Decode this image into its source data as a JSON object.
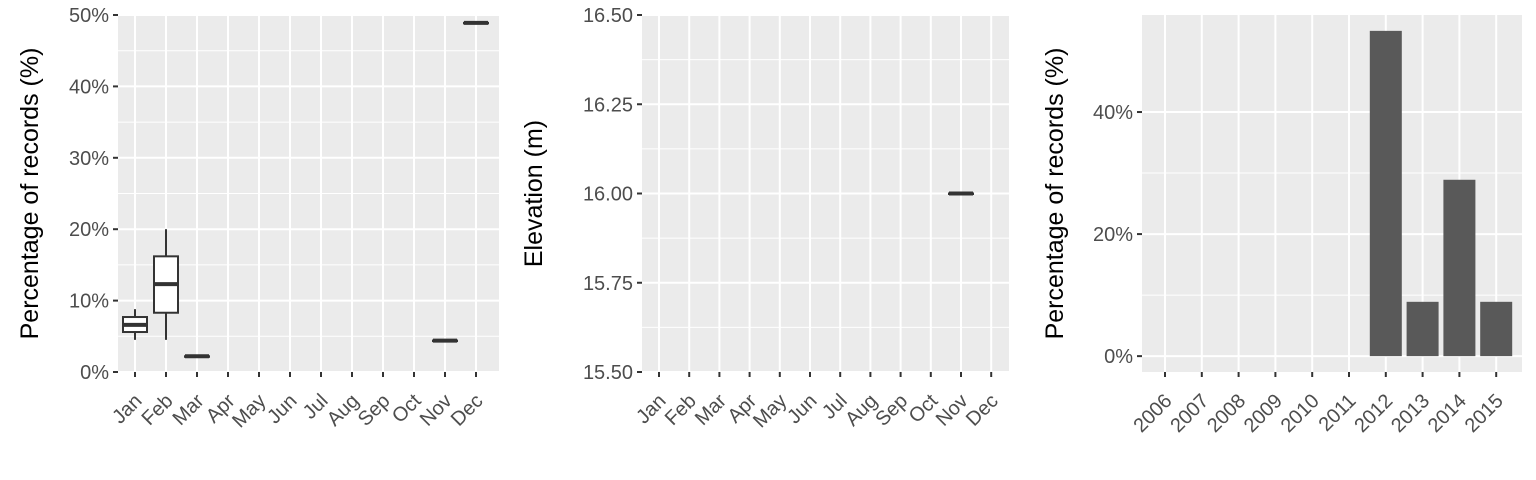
{
  "colors": {
    "panel_bg": "#ebebeb",
    "grid": "#ffffff",
    "tick_text": "#4d4d4d",
    "mark": "#333333",
    "bar_fill": "#595959",
    "box_fill": "#ffffff"
  },
  "chart_data": [
    {
      "type": "box",
      "ylabel": "Percentage of records (%)",
      "categories": [
        "Jan",
        "Feb",
        "Mar",
        "Apr",
        "May",
        "Jun",
        "Jul",
        "Aug",
        "Sep",
        "Oct",
        "Nov",
        "Dec"
      ],
      "ylim": [
        0,
        50
      ],
      "yticks": [
        0,
        10,
        20,
        30,
        40,
        50
      ],
      "yticklabels": [
        "0%",
        "10%",
        "20%",
        "30%",
        "40%",
        "50%"
      ],
      "boxes": [
        {
          "category": "Jan",
          "min": 4.5,
          "q1": 5.6,
          "median": 6.6,
          "q3": 7.7,
          "max": 8.8
        },
        {
          "category": "Feb",
          "min": 4.5,
          "q1": 8.3,
          "median": 12.3,
          "q3": 16.2,
          "max": 20.0
        },
        {
          "category": "Mar",
          "min": 2.2,
          "q1": 2.2,
          "median": 2.2,
          "q3": 2.2,
          "max": 2.2
        },
        {
          "category": "Nov",
          "min": 4.4,
          "q1": 4.4,
          "median": 4.4,
          "q3": 4.4,
          "max": 4.4
        },
        {
          "category": "Dec",
          "min": 48.9,
          "q1": 48.9,
          "median": 48.9,
          "q3": 48.9,
          "max": 48.9
        }
      ],
      "grid": true
    },
    {
      "type": "box",
      "ylabel": "Elevation (m)",
      "categories": [
        "Jan",
        "Feb",
        "Mar",
        "Apr",
        "May",
        "Jun",
        "Jul",
        "Aug",
        "Sep",
        "Oct",
        "Nov",
        "Dec"
      ],
      "ylim": [
        15.5,
        16.5
      ],
      "yticks": [
        15.5,
        15.75,
        16.0,
        16.25,
        16.5
      ],
      "yticklabels": [
        "15.50",
        "15.75",
        "16.00",
        "16.25",
        "16.50"
      ],
      "boxes": [
        {
          "category": "Nov",
          "min": 16.0,
          "q1": 16.0,
          "median": 16.0,
          "q3": 16.0,
          "max": 16.0
        }
      ],
      "grid": true
    },
    {
      "type": "bar",
      "ylabel": "Percentage of records (%)",
      "categories": [
        "2006",
        "2007",
        "2008",
        "2009",
        "2010",
        "2011",
        "2012",
        "2013",
        "2014",
        "2015"
      ],
      "values": [
        0,
        0,
        0,
        0,
        0,
        0,
        53.3,
        8.9,
        28.9,
        8.9
      ],
      "ylim": [
        -2.6,
        55.9
      ],
      "yticks": [
        0,
        20,
        40
      ],
      "yticklabels": [
        "0%",
        "20%",
        "40%"
      ],
      "grid": true
    }
  ]
}
